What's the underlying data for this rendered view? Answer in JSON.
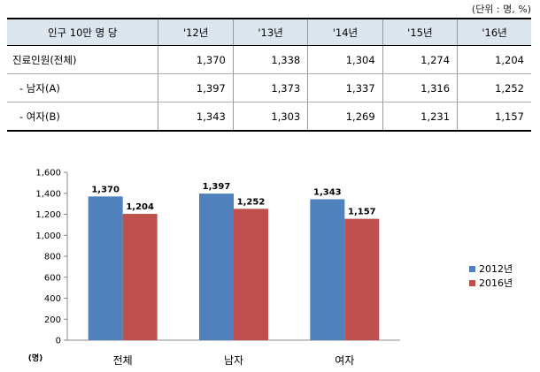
{
  "unit_note": "(단위 : 명, %)",
  "table": {
    "header": [
      "인구 10만 명 당",
      "'12년",
      "'13년",
      "'14년",
      "'15년",
      "'16년"
    ],
    "rows": [
      {
        "label": "진료인원(전체)",
        "values": [
          "1,370",
          "1,338",
          "1,304",
          "1,274",
          "1,204"
        ]
      },
      {
        "label": "- 남자(A)",
        "values": [
          "1,397",
          "1,373",
          "1,337",
          "1,316",
          "1,252"
        ]
      },
      {
        "label": "- 여자(B)",
        "values": [
          "1,343",
          "1,303",
          "1,269",
          "1,231",
          "1,157"
        ]
      }
    ]
  },
  "chart_data": {
    "type": "bar",
    "categories": [
      "전체",
      "남자",
      "여자"
    ],
    "series": [
      {
        "name": "2012년",
        "values": [
          1370,
          1397,
          1343
        ],
        "labels": [
          "1,370",
          "1,397",
          "1,343"
        ],
        "color": "#4f81bd"
      },
      {
        "name": "2016년",
        "values": [
          1204,
          1252,
          1157
        ],
        "labels": [
          "1,204",
          "1,252",
          "1,157"
        ],
        "color": "#c0504d"
      }
    ],
    "y_unit_label": "(명)",
    "ylim": [
      0,
      1600
    ],
    "yticks": [
      0,
      200,
      400,
      600,
      800,
      1000,
      1200,
      1400,
      1600
    ],
    "ytick_labels": [
      "0",
      "200",
      "400",
      "600",
      "800",
      "1,000",
      "1,200",
      "1,400",
      "1,600"
    ],
    "grid": false,
    "legend_position": "right"
  }
}
